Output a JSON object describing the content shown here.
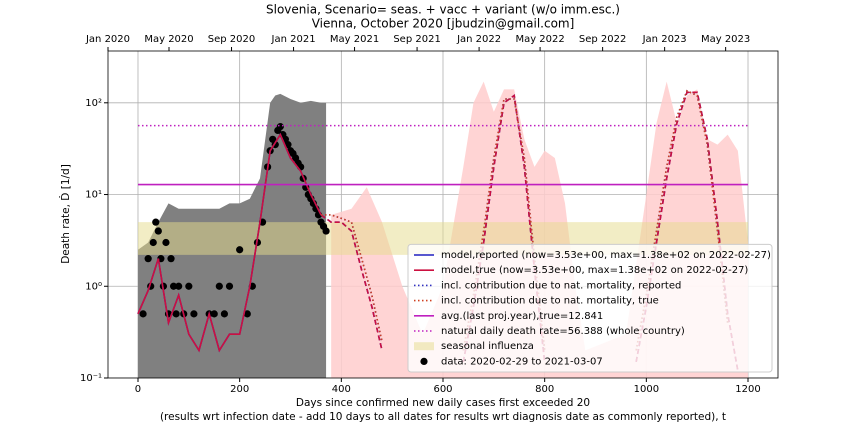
{
  "chart_data": {
    "type": "line",
    "title": "Slovenia, Scenario= seas. + vacc + variant (w/o imm.esc.)",
    "subtitle": "Vienna, October 2020 [jbudzin@gmail.com]",
    "xlabel": "Days since confirmed new daily cases first exceeded 20",
    "xlabel_note": "(results wrt infection date - add 10 days to all dates for results wrt diagnosis date as commonly reported), t",
    "ylabel": "Death rate, Ḋ [1/d]",
    "log_y": true,
    "grid": true,
    "legend": "lower right",
    "xlim": [
      -59,
      1259
    ],
    "ylim": [
      0.1,
      367
    ],
    "xticks": [
      0,
      200,
      400,
      600,
      800,
      1000,
      1200
    ],
    "x2ticks": [
      {
        "value": -59,
        "label": "Jan 2020"
      },
      {
        "value": 61,
        "label": "May 2020"
      },
      {
        "value": 184,
        "label": "Sep 2020"
      },
      {
        "value": 306,
        "label": "Jan 2021"
      },
      {
        "value": 426,
        "label": "May 2021"
      },
      {
        "value": 549,
        "label": "Sep 2021"
      },
      {
        "value": 671,
        "label": "Jan 2022"
      },
      {
        "value": 791,
        "label": "May 2022"
      },
      {
        "value": 914,
        "label": "Sep 2022"
      },
      {
        "value": 1036,
        "label": "Jan 2023"
      },
      {
        "value": 1156,
        "label": "May 2023"
      }
    ],
    "yticks": [
      {
        "value": 0.1,
        "label": "10⁻¹"
      },
      {
        "value": 1,
        "label": "10⁰"
      },
      {
        "value": 10,
        "label": "10¹"
      },
      {
        "value": 100,
        "label": "10²"
      }
    ],
    "areas": [
      {
        "color": "#808080",
        "x": [
          0,
          20,
          40,
          60,
          80,
          100,
          120,
          140,
          160,
          180,
          200,
          220,
          240,
          260,
          270,
          280,
          300,
          320,
          340,
          360,
          370
        ],
        "values": [
          2.5,
          3,
          5,
          8,
          7,
          7,
          7,
          7,
          7,
          8,
          8,
          9,
          15,
          100,
          120,
          125,
          110,
          100,
          105,
          100,
          100
        ]
      },
      {
        "color": "#ffcccc",
        "x": [
          380,
          420,
          450,
          480,
          520,
          560,
          600,
          640,
          660,
          680,
          700,
          720,
          740,
          760,
          780,
          800,
          820,
          840,
          860,
          880,
          960,
          1000,
          1020,
          1040,
          1060,
          1080,
          1100,
          1120,
          1140,
          1160,
          1180,
          1200
        ],
        "values": [
          6,
          7,
          12,
          5,
          1,
          0.3,
          1,
          20,
          100,
          170,
          80,
          140,
          140,
          40,
          20,
          30,
          25,
          8,
          1,
          0.2,
          0.3,
          10,
          60,
          170,
          60,
          120,
          140,
          40,
          35,
          45,
          30,
          3
        ]
      }
    ],
    "band": {
      "name": "seasonal influenza",
      "color": "#e6dc8c",
      "x": [
        0,
        1200
      ],
      "lower": [
        2.2,
        2.2
      ],
      "upper": [
        5,
        5
      ]
    },
    "x": [
      0,
      20,
      40,
      60,
      80,
      100,
      120,
      140,
      160,
      180,
      200,
      220,
      240,
      260,
      280,
      300,
      320,
      340,
      360,
      380,
      400,
      420,
      440,
      460,
      480,
      500,
      520,
      540,
      560,
      580,
      600,
      620,
      640,
      660,
      680,
      700,
      720,
      740,
      760,
      780,
      800,
      820,
      840,
      860,
      880,
      900,
      920,
      940,
      960,
      980,
      1000,
      1020,
      1040,
      1060,
      1080,
      1100,
      1120,
      1140,
      1160,
      1180,
      1200
    ],
    "series": [
      {
        "name": "model,reported (now=3.53e+00, max=1.38e+02 on 2022-02-27)",
        "color": "#2020c0",
        "style": "solid",
        "values": [
          0.5,
          0.9,
          2,
          0.4,
          0.8,
          0.3,
          0.2,
          0.5,
          0.2,
          0.3,
          0.3,
          1,
          5,
          30,
          45,
          25,
          18,
          10,
          6,
          5,
          5,
          4,
          1.5,
          0.6,
          0.2,
          null,
          null,
          null,
          null,
          null,
          null,
          null,
          0.15,
          0.6,
          3,
          20,
          100,
          120,
          20,
          1.5,
          0.15,
          null,
          null,
          null,
          null,
          null,
          null,
          null,
          null,
          0.15,
          0.6,
          3,
          15,
          60,
          130,
          130,
          40,
          5,
          0.5,
          0.12,
          null
        ]
      },
      {
        "name": "model,true (now=3.53e+00, max=1.38e+02 on 2022-02-27)",
        "color": "#cc1040",
        "style": "solid",
        "values": [
          0.5,
          0.9,
          2,
          0.4,
          0.8,
          0.3,
          0.2,
          0.5,
          0.2,
          0.3,
          0.3,
          1,
          5,
          30,
          45,
          25,
          18,
          10,
          6,
          5,
          5,
          4,
          1.5,
          0.6,
          0.2,
          null,
          null,
          null,
          null,
          null,
          null,
          null,
          0.15,
          0.6,
          3,
          20,
          100,
          120,
          20,
          1.5,
          0.15,
          null,
          null,
          null,
          null,
          null,
          null,
          null,
          null,
          0.15,
          0.6,
          3,
          15,
          60,
          130,
          130,
          40,
          5,
          0.5,
          0.12,
          null
        ]
      },
      {
        "name": "incl. contribution due to nat. mortality, reported",
        "color": "#3030c0",
        "style": "dotted",
        "values": [
          null,
          null,
          null,
          null,
          null,
          null,
          null,
          null,
          null,
          null,
          null,
          null,
          null,
          null,
          null,
          null,
          null,
          null,
          6,
          6,
          5.5,
          5,
          2,
          0.8,
          0.25,
          null,
          null,
          null,
          null,
          null,
          null,
          null,
          0.2,
          0.8,
          4,
          25,
          110,
          110,
          25,
          2,
          0.2,
          null,
          null,
          null,
          null,
          null,
          null,
          null,
          null,
          0.2,
          0.8,
          4,
          20,
          70,
          135,
          120,
          35,
          4,
          0.4,
          null,
          null
        ]
      },
      {
        "name": "incl. contribution due to nat. mortality, true",
        "color": "#d04020",
        "style": "dotted",
        "values": [
          null,
          null,
          null,
          null,
          null,
          null,
          null,
          null,
          null,
          null,
          null,
          null,
          null,
          null,
          null,
          null,
          null,
          null,
          6,
          6,
          5.5,
          5,
          2,
          0.8,
          0.25,
          null,
          null,
          null,
          null,
          null,
          null,
          null,
          0.2,
          0.8,
          4,
          25,
          110,
          110,
          25,
          2,
          0.2,
          null,
          null,
          null,
          null,
          null,
          null,
          null,
          null,
          0.2,
          0.8,
          4,
          20,
          70,
          135,
          120,
          35,
          4,
          0.4,
          null,
          null
        ]
      },
      {
        "name": "avg.(last proj.year),true=12.841",
        "color": "#bf20bf",
        "style": "solid",
        "x": [
          0,
          1200
        ],
        "values": [
          12.841,
          12.841
        ]
      },
      {
        "name": "natural daily death rate=56.388 (whole country)",
        "color": "#bf20bf",
        "style": "dotted",
        "x": [
          0,
          1200
        ],
        "values": [
          56.388,
          56.388
        ]
      }
    ],
    "points": {
      "name": "data: 2020-02-29 to 2021-03-07",
      "color": "#000000",
      "x": [
        10,
        20,
        25,
        30,
        35,
        40,
        45,
        50,
        55,
        60,
        65,
        70,
        75,
        80,
        90,
        100,
        110,
        140,
        150,
        160,
        170,
        180,
        200,
        215,
        225,
        235,
        245,
        255,
        260,
        265,
        270,
        275,
        280,
        285,
        290,
        295,
        300,
        305,
        310,
        315,
        320,
        325,
        330,
        335,
        340,
        345,
        350,
        355,
        360,
        365,
        370
      ],
      "values": [
        0.5,
        2,
        1,
        3,
        5,
        4,
        2,
        1,
        3,
        0.5,
        2,
        1,
        0.5,
        1,
        0.5,
        1,
        0.5,
        0.5,
        0.5,
        1,
        0.5,
        1,
        2.5,
        0.5,
        1,
        3,
        5,
        20,
        30,
        40,
        35,
        50,
        55,
        45,
        40,
        35,
        30,
        28,
        25,
        22,
        20,
        15,
        12,
        10,
        9,
        8,
        7,
        6,
        5,
        4.5,
        4
      ]
    }
  }
}
